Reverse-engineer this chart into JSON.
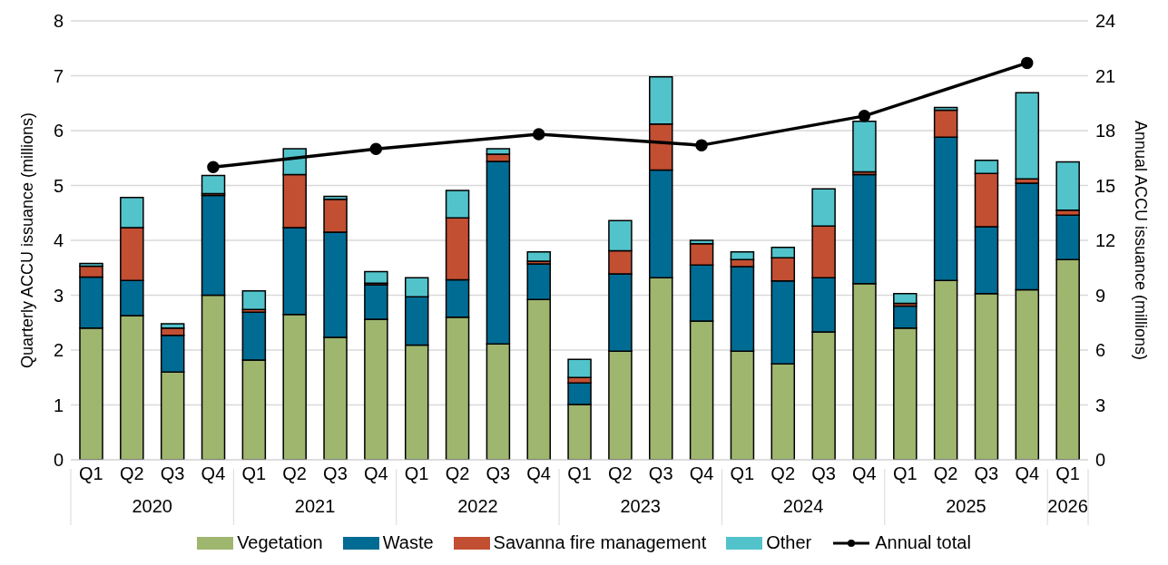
{
  "chart_data": {
    "type": "bar",
    "stacked": true,
    "ylabel": "Quarterly ACCU issuance (millions)",
    "y2label": "Annual ACCU issuance (millions)",
    "categories": [
      "Q1",
      "Q2",
      "Q3",
      "Q4",
      "Q1",
      "Q2",
      "Q3",
      "Q4",
      "Q1",
      "Q2",
      "Q3",
      "Q4",
      "Q1",
      "Q2",
      "Q3",
      "Q4",
      "Q1",
      "Q2",
      "Q3",
      "Q4",
      "Q1",
      "Q2",
      "Q3",
      "Q4",
      "Q1"
    ],
    "annotations": [
      "2020",
      "2021",
      "2022",
      "2023",
      "2024",
      "2025",
      "2026"
    ],
    "ylim": [
      0,
      8
    ],
    "yticks": [
      0,
      1,
      2,
      3,
      4,
      5,
      6,
      7,
      8
    ],
    "y2lim": [
      0,
      24
    ],
    "y2ticks": [
      0,
      3,
      6,
      9,
      12,
      15,
      18,
      21,
      24
    ],
    "grid": "y",
    "legend": "bottom",
    "marker": "circle",
    "series": [
      {
        "name": "Vegetation",
        "color": "#9fb66f",
        "values": [
          2.4,
          2.63,
          1.6,
          3.0,
          1.82,
          2.65,
          2.23,
          2.56,
          2.09,
          2.6,
          2.11,
          2.92,
          1.01,
          1.98,
          3.32,
          2.53,
          1.98,
          1.75,
          2.33,
          3.21,
          2.4,
          3.27,
          3.03,
          3.1,
          3.65
        ]
      },
      {
        "name": "Waste",
        "color": "#006c93",
        "values": [
          0.93,
          0.64,
          0.67,
          1.82,
          0.87,
          1.58,
          1.92,
          0.63,
          0.88,
          0.68,
          3.33,
          0.65,
          0.39,
          1.41,
          1.96,
          1.02,
          1.54,
          1.51,
          0.99,
          1.99,
          0.4,
          2.61,
          1.22,
          1.94,
          0.81
        ]
      },
      {
        "name": "Savanna fire management",
        "color": "#c34f33",
        "values": [
          0.2,
          0.96,
          0.13,
          0.03,
          0.05,
          0.97,
          0.6,
          0.03,
          0,
          1.13,
          0.13,
          0.05,
          0.1,
          0.42,
          0.84,
          0.39,
          0.13,
          0.42,
          0.94,
          0.05,
          0.05,
          0.49,
          0.97,
          0.08,
          0.09
        ]
      },
      {
        "name": "Other",
        "color": "#52c3cb",
        "values": [
          0.05,
          0.55,
          0.08,
          0.33,
          0.34,
          0.47,
          0.05,
          0.21,
          0.35,
          0.5,
          0.1,
          0.17,
          0.33,
          0.55,
          0.86,
          0.06,
          0.14,
          0.19,
          0.68,
          0.92,
          0.18,
          0.05,
          0.24,
          1.57,
          0.88
        ]
      },
      {
        "name": "Annual total",
        "type": "line",
        "axis": "y2",
        "color": "#000000",
        "values": [
          null,
          null,
          null,
          16.0,
          null,
          null,
          null,
          17.0,
          null,
          null,
          null,
          17.8,
          null,
          null,
          null,
          17.2,
          null,
          null,
          null,
          18.8,
          null,
          null,
          null,
          21.7,
          null
        ]
      }
    ]
  }
}
